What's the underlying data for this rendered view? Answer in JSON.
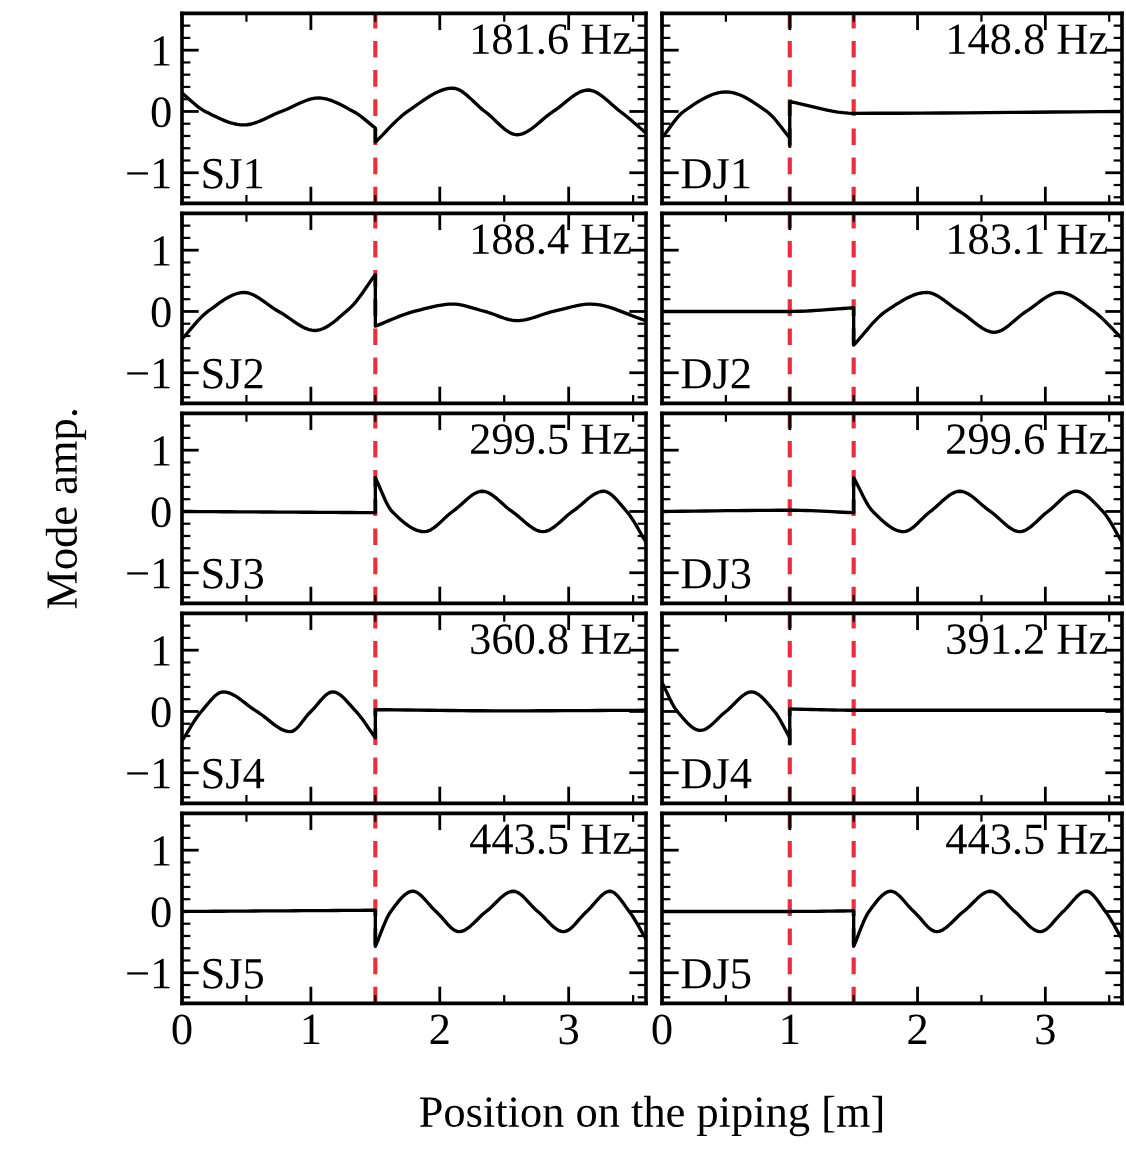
{
  "chart_data": [
    {
      "type": "line",
      "series": [
        {
          "color": "#000000",
          "x": [
            0,
            0.18,
            0.48,
            0.77,
            1.06,
            1.33,
            1.5,
            1.5,
            1.75,
            2.1,
            2.35,
            2.6,
            2.88,
            3.15,
            3.4,
            3.6
          ],
          "values": [
            0.3,
            0,
            -0.22,
            0,
            0.22,
            0,
            -0.27,
            -0.5,
            0,
            0.38,
            0,
            -0.38,
            0,
            0.35,
            0,
            -0.35
          ]
        }
      ],
      "xlim": [
        0,
        3.6
      ],
      "ylim": [
        -1.5,
        1.6
      ],
      "xticks": [
        0,
        1,
        2,
        3
      ],
      "yticks": [
        -1,
        0,
        1
      ],
      "tick_labels": "y",
      "ref_lines": [
        {
          "axis": "x",
          "value": 1.5,
          "color": "#e8303a",
          "line_style": "dashed"
        }
      ],
      "annotations": [
        "181.6 Hz",
        "SJ1"
      ]
    },
    {
      "type": "line",
      "series": [
        {
          "color": "#000000",
          "x": [
            0,
            0.17,
            0.5,
            0.82,
            1.0,
            1.0,
            1.0,
            1.5,
            3.6
          ],
          "values": [
            -0.43,
            0,
            0.32,
            0,
            -0.43,
            -0.57,
            0.16,
            -0.03,
            0
          ]
        }
      ],
      "xlim": [
        0,
        3.6
      ],
      "ylim": [
        -1.5,
        1.6
      ],
      "xticks": [
        0,
        1,
        2,
        3
      ],
      "yticks": [
        -1,
        0,
        1
      ],
      "tick_labels": false,
      "ref_lines": [
        {
          "axis": "x",
          "value": 1.0,
          "color": "#e8303a",
          "line_style": "dashed"
        },
        {
          "axis": "x",
          "value": 1.5,
          "color": "#e8303a",
          "line_style": "dashed"
        }
      ],
      "annotations": [
        "148.8 Hz",
        "DJ1"
      ]
    },
    {
      "type": "line",
      "series": [
        {
          "color": "#000000",
          "x": [
            0,
            0.2,
            0.48,
            0.75,
            1.03,
            1.3,
            1.5,
            1.5,
            1.8,
            2.1,
            2.35,
            2.6,
            2.88,
            3.17,
            3.6
          ],
          "values": [
            -0.45,
            0,
            0.31,
            0,
            -0.31,
            0.05,
            0.6,
            -0.24,
            0,
            0.12,
            0,
            -0.15,
            0,
            0.12,
            -0.15
          ]
        }
      ],
      "xlim": [
        0,
        3.6
      ],
      "ylim": [
        -1.5,
        1.6
      ],
      "xticks": [
        0,
        1,
        2,
        3
      ],
      "yticks": [
        -1,
        0,
        1
      ],
      "tick_labels": "y",
      "ref_lines": [
        {
          "axis": "x",
          "value": 1.5,
          "color": "#e8303a",
          "line_style": "dashed"
        }
      ],
      "annotations": [
        "188.4 Hz",
        "SJ2"
      ]
    },
    {
      "type": "line",
      "series": [
        {
          "color": "#000000",
          "x": [
            0,
            1.0,
            1.5,
            1.5,
            1.75,
            2.07,
            2.33,
            2.6,
            2.85,
            3.11,
            3.38,
            3.6
          ],
          "values": [
            0,
            0,
            0.06,
            -0.55,
            0,
            0.31,
            0,
            -0.34,
            0,
            0.31,
            0,
            -0.44
          ]
        }
      ],
      "xlim": [
        0,
        3.6
      ],
      "ylim": [
        -1.5,
        1.6
      ],
      "xticks": [
        0,
        1,
        2,
        3
      ],
      "yticks": [
        -1,
        0,
        1
      ],
      "tick_labels": false,
      "ref_lines": [
        {
          "axis": "x",
          "value": 1.0,
          "color": "#e8303a",
          "line_style": "dashed"
        },
        {
          "axis": "x",
          "value": 1.5,
          "color": "#e8303a",
          "line_style": "dashed"
        }
      ],
      "annotations": [
        "183.1 Hz",
        "DJ2"
      ]
    },
    {
      "type": "line",
      "series": [
        {
          "color": "#000000",
          "x": [
            0,
            0.75,
            1.5,
            1.5,
            1.63,
            1.88,
            2.1,
            2.33,
            2.56,
            2.8,
            3.03,
            3.27,
            3.45,
            3.6
          ],
          "values": [
            0,
            -0.01,
            -0.02,
            0.55,
            0,
            -0.33,
            0,
            0.33,
            0,
            -0.33,
            0,
            0.33,
            0,
            -0.5
          ]
        }
      ],
      "xlim": [
        0,
        3.6
      ],
      "ylim": [
        -1.5,
        1.6
      ],
      "xticks": [
        0,
        1,
        2,
        3
      ],
      "yticks": [
        -1,
        0,
        1
      ],
      "tick_labels": "y",
      "ylabel": "Mode amp.",
      "ref_lines": [
        {
          "axis": "x",
          "value": 1.5,
          "color": "#e8303a",
          "line_style": "dashed"
        }
      ],
      "annotations": [
        "299.5 Hz",
        "SJ3"
      ]
    },
    {
      "type": "line",
      "series": [
        {
          "color": "#000000",
          "x": [
            0,
            1.0,
            1.5,
            1.5,
            1.65,
            1.89,
            2.1,
            2.33,
            2.57,
            2.8,
            3.02,
            3.24,
            3.45,
            3.6
          ],
          "values": [
            0,
            0.02,
            -0.02,
            0.55,
            0,
            -0.33,
            0,
            0.33,
            0,
            -0.33,
            0,
            0.33,
            0,
            -0.5
          ]
        }
      ],
      "xlim": [
        0,
        3.6
      ],
      "ylim": [
        -1.5,
        1.6
      ],
      "xticks": [
        0,
        1,
        2,
        3
      ],
      "yticks": [
        -1,
        0,
        1
      ],
      "tick_labels": false,
      "ref_lines": [
        {
          "axis": "x",
          "value": 1.0,
          "color": "#e8303a",
          "line_style": "dashed"
        },
        {
          "axis": "x",
          "value": 1.5,
          "color": "#e8303a",
          "line_style": "dashed"
        }
      ],
      "annotations": [
        "299.6 Hz",
        "DJ3"
      ]
    },
    {
      "type": "line",
      "series": [
        {
          "color": "#000000",
          "x": [
            0,
            0.15,
            0.32,
            0.58,
            0.84,
            1.0,
            1.17,
            1.35,
            1.5,
            1.5,
            2.5,
            3.6
          ],
          "values": [
            -0.48,
            0,
            0.32,
            0,
            -0.33,
            0,
            0.32,
            0,
            -0.43,
            0.03,
            0.01,
            0.02
          ]
        }
      ],
      "xlim": [
        0,
        3.6
      ],
      "ylim": [
        -1.5,
        1.6
      ],
      "xticks": [
        0,
        1,
        2,
        3
      ],
      "yticks": [
        -1,
        0,
        1
      ],
      "tick_labels": "y",
      "ref_lines": [
        {
          "axis": "x",
          "value": 1.5,
          "color": "#e8303a",
          "line_style": "dashed"
        }
      ],
      "annotations": [
        "360.8 Hz",
        "SJ4"
      ]
    },
    {
      "type": "line",
      "series": [
        {
          "color": "#000000",
          "x": [
            0,
            0.12,
            0.3,
            0.5,
            0.7,
            0.88,
            1.0,
            1.0,
            1.0,
            1.5,
            3.6
          ],
          "values": [
            0.47,
            0,
            -0.31,
            0,
            0.32,
            0,
            -0.43,
            -0.53,
            0.04,
            0.02,
            0.02
          ]
        }
      ],
      "xlim": [
        0,
        3.6
      ],
      "ylim": [
        -1.5,
        1.6
      ],
      "xticks": [
        0,
        1,
        2,
        3
      ],
      "yticks": [
        -1,
        0,
        1
      ],
      "tick_labels": false,
      "ref_lines": [
        {
          "axis": "x",
          "value": 1.0,
          "color": "#e8303a",
          "line_style": "dashed"
        },
        {
          "axis": "x",
          "value": 1.5,
          "color": "#e8303a",
          "line_style": "dashed"
        }
      ],
      "annotations": [
        "391.2 Hz",
        "DJ4"
      ]
    },
    {
      "type": "line",
      "series": [
        {
          "color": "#000000",
          "x": [
            0,
            0.75,
            1.5,
            1.5,
            1.62,
            1.79,
            1.97,
            2.15,
            2.36,
            2.57,
            2.76,
            2.96,
            3.14,
            3.32,
            3.47,
            3.6
          ],
          "values": [
            0,
            0.01,
            0.02,
            -0.57,
            0,
            0.33,
            0,
            -0.33,
            0,
            0.33,
            0,
            -0.33,
            0,
            0.33,
            0,
            -0.45
          ]
        }
      ],
      "xlim": [
        0,
        3.6
      ],
      "ylim": [
        -1.5,
        1.6
      ],
      "xticks": [
        0,
        1,
        2,
        3
      ],
      "yticks": [
        -1,
        0,
        1
      ],
      "xlabel": "Position on the piping [m]",
      "ref_lines": [
        {
          "axis": "x",
          "value": 1.5,
          "color": "#e8303a",
          "line_style": "dashed"
        }
      ],
      "annotations": [
        "443.5 Hz",
        "SJ5"
      ]
    },
    {
      "type": "line",
      "series": [
        {
          "color": "#000000",
          "x": [
            0,
            1.0,
            1.5,
            1.5,
            1.62,
            1.79,
            1.97,
            2.15,
            2.36,
            2.57,
            2.76,
            2.96,
            3.14,
            3.32,
            3.47,
            3.6
          ],
          "values": [
            0,
            0,
            0.01,
            -0.57,
            0,
            0.33,
            0,
            -0.33,
            0,
            0.33,
            0,
            -0.33,
            0,
            0.33,
            0,
            -0.45
          ]
        }
      ],
      "xlim": [
        0,
        3.6
      ],
      "ylim": [
        -1.5,
        1.6
      ],
      "xticks": [
        0,
        1,
        2,
        3
      ],
      "yticks": [
        -1,
        0,
        1
      ],
      "tick_labels": "x",
      "ref_lines": [
        {
          "axis": "x",
          "value": 1.0,
          "color": "#e8303a",
          "line_style": "dashed"
        },
        {
          "axis": "x",
          "value": 1.5,
          "color": "#e8303a",
          "line_style": "dashed"
        }
      ],
      "annotations": [
        "443.5 Hz",
        "DJ5"
      ]
    }
  ]
}
